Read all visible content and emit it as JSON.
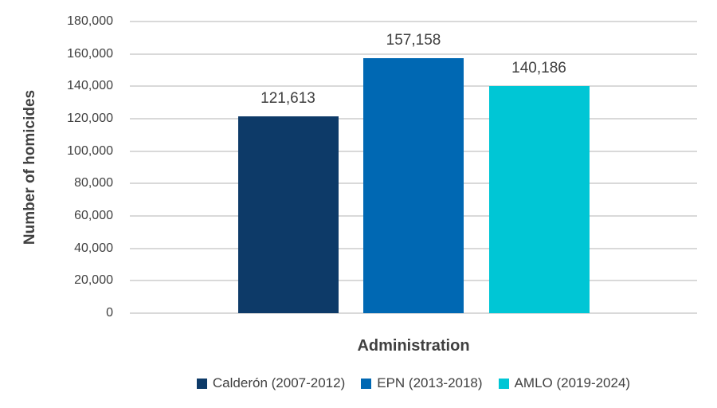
{
  "chart_data": {
    "type": "bar",
    "title": "",
    "xlabel": "Administration",
    "ylabel": "Number of homicides",
    "categories": [
      "Calderón (2007-2012)",
      "EPN (2013-2018)",
      "AMLO (2019-2024)"
    ],
    "series": [
      {
        "key": "calderon",
        "name": "Calderón (2007-2012)",
        "value": 121613,
        "data_label": "121,613",
        "color": "#0d3a68"
      },
      {
        "key": "epn",
        "name": "EPN (2013-2018)",
        "value": 157158,
        "data_label": "157,158",
        "color": "#0068b3"
      },
      {
        "key": "amlo",
        "name": "AMLO (2019-2024)",
        "value": 140186,
        "data_label": "140,186",
        "color": "#00c6d5"
      }
    ],
    "ylim": [
      0,
      180000
    ],
    "ytick_step": 20000,
    "ytick_labels": [
      "0",
      "20,000",
      "40,000",
      "60,000",
      "80,000",
      "100,000",
      "120,000",
      "140,000",
      "160,000",
      "180,000"
    ],
    "grid": true,
    "legend_position": "bottom"
  },
  "colors": {
    "background": "#ffffff",
    "gridline": "#d9d9d9",
    "axis_text": "#404040",
    "data_label_text": "#3f3f3f"
  }
}
